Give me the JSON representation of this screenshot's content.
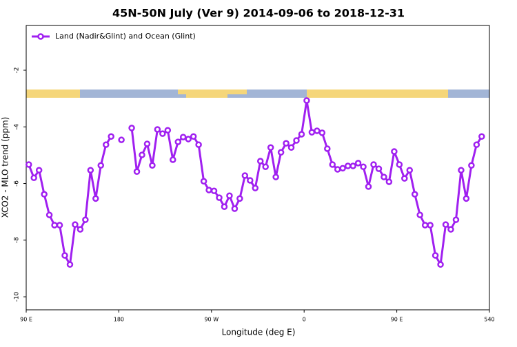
{
  "chart_data": {
    "type": "line",
    "title": "45N-50N July (Ver 9)   2014-09-06 to 2018-12-31",
    "xlabel": "Longitude (deg E)",
    "ylabel": "XCO2 - MLO trend (ppm)",
    "x": [
      92.5,
      97.5,
      102.5,
      107.5,
      112.5,
      117.5,
      122.5,
      127.5,
      132.5,
      137.5,
      142.5,
      147.5,
      152.5,
      157.5,
      162.5,
      167.5,
      172.5,
      177.5,
      182.5,
      187.5,
      192.5,
      197.5,
      202.5,
      207.5,
      212.5,
      217.5,
      222.5,
      227.5,
      232.5,
      237.5,
      242.5,
      247.5,
      252.5,
      257.5,
      262.5,
      267.5,
      272.5,
      277.5,
      282.5,
      287.5,
      292.5,
      297.5,
      302.5,
      307.5,
      312.5,
      317.5,
      322.5,
      327.5,
      332.5,
      337.5,
      342.5,
      347.5,
      352.5,
      357.5,
      362.5,
      367.5,
      372.5,
      377.5,
      382.5,
      387.5,
      392.5,
      397.5,
      402.5,
      407.5,
      412.5,
      417.5,
      422.5,
      427.5,
      432.5,
      437.5,
      442.5,
      447.5,
      452.5,
      457.5,
      462.5,
      467.5,
      472.5,
      477.5,
      482.5,
      487.5,
      492.5,
      497.5,
      502.5,
      507.5,
      512.5,
      517.5,
      522.5,
      527.5,
      532.5
    ],
    "series": [
      {
        "name": "Land (Nadir&Glint) and Ocean (Glint)",
        "color": "#a020f0",
        "values": [
          -5.33,
          -5.8,
          -5.53,
          -6.38,
          -7.11,
          -7.47,
          -7.47,
          -8.54,
          -8.86,
          -7.45,
          -7.62,
          -7.28,
          -5.53,
          -6.53,
          -5.36,
          -4.63,
          -4.34,
          null,
          -4.46,
          null,
          -4.04,
          -5.58,
          -4.99,
          -4.6,
          -5.36,
          -4.09,
          -4.24,
          -4.12,
          -5.16,
          -4.53,
          -4.36,
          -4.43,
          -4.34,
          -4.63,
          -5.92,
          -6.23,
          -6.26,
          -6.5,
          -6.82,
          -6.43,
          -6.89,
          -6.53,
          -5.72,
          -5.89,
          -6.16,
          -5.21,
          -5.41,
          -4.73,
          -5.77,
          -4.9,
          -4.58,
          -4.73,
          -4.48,
          -4.26,
          -3.07,
          -4.19,
          -4.14,
          -4.21,
          -4.77,
          -5.33,
          -5.5,
          -5.46,
          -5.38,
          -5.38,
          -5.28,
          -5.41,
          -6.11,
          -5.33,
          -5.48,
          -5.77,
          -5.94,
          -4.87,
          -5.33,
          -5.82,
          -5.53,
          -6.38,
          -7.11,
          -7.47,
          -7.47,
          -8.54,
          -8.86,
          -7.45,
          -7.62,
          -7.28,
          -5.53,
          -6.53,
          -5.36,
          -4.63,
          -4.34
        ]
      }
    ],
    "xlim": [
      90,
      540
    ],
    "ylim": [
      -10.46,
      -0.42
    ],
    "xticks": [
      {
        "value": 90,
        "label": "90 E"
      },
      180,
      {
        "value": 270,
        "label": "90 W"
      },
      {
        "value": 360,
        "label": "0"
      },
      {
        "value": 450,
        "label": "90 E"
      },
      540
    ],
    "yticks": [
      -2,
      -4,
      -6,
      -8,
      -10
    ],
    "legend": "upper left"
  }
}
